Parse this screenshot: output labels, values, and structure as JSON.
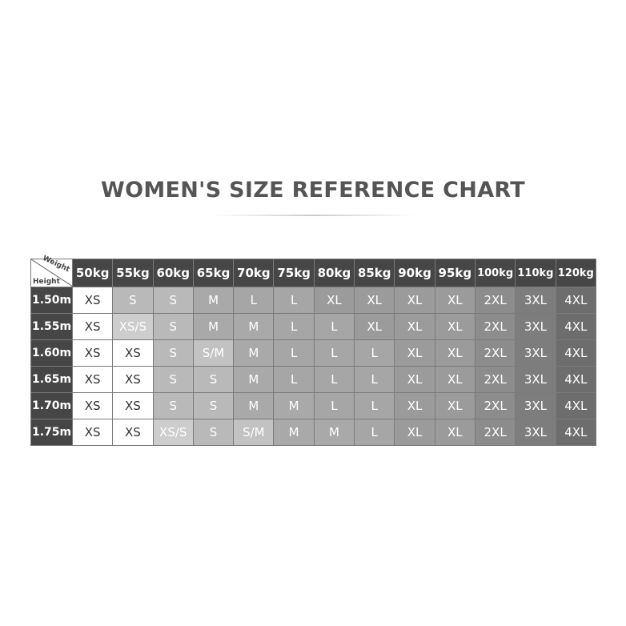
{
  "title": "WOMEN'S SIZE REFERENCE CHART",
  "corner": {
    "weight_label": "Weight",
    "height_label": "Height"
  },
  "weights": [
    "50kg",
    "55kg",
    "60kg",
    "65kg",
    "70kg",
    "75kg",
    "80kg",
    "85kg",
    "90kg",
    "95kg",
    "100kg",
    "110kg",
    "120kg"
  ],
  "rows": [
    {
      "height": "1.50m",
      "sizes": [
        "XS",
        "S",
        "S",
        "M",
        "L",
        "L",
        "XL",
        "XL",
        "XL",
        "XL",
        "2XL",
        "3XL",
        "4XL"
      ]
    },
    {
      "height": "1.55m",
      "sizes": [
        "XS",
        "XS/S",
        "S",
        "M",
        "M",
        "L",
        "L",
        "XL",
        "XL",
        "XL",
        "2XL",
        "3XL",
        "4XL"
      ]
    },
    {
      "height": "1.60m",
      "sizes": [
        "XS",
        "XS",
        "S",
        "S/M",
        "M",
        "L",
        "L",
        "L",
        "XL",
        "XL",
        "2XL",
        "3XL",
        "4XL"
      ]
    },
    {
      "height": "1.65m",
      "sizes": [
        "XS",
        "XS",
        "S",
        "S",
        "M",
        "L",
        "L",
        "L",
        "XL",
        "XL",
        "2XL",
        "3XL",
        "4XL"
      ]
    },
    {
      "height": "1.70m",
      "sizes": [
        "XS",
        "XS",
        "S",
        "S",
        "M",
        "M",
        "L",
        "L",
        "XL",
        "XL",
        "2XL",
        "3XL",
        "4XL"
      ]
    },
    {
      "height": "1.75m",
      "sizes": [
        "XS",
        "XS",
        "XS/S",
        "S",
        "S/M",
        "M",
        "M",
        "L",
        "XL",
        "XL",
        "2XL",
        "3XL",
        "4XL"
      ]
    }
  ],
  "size_colors": {
    "XS": "#ffffff",
    "XS/S": "#cdcdcd",
    "S": "#b9b9b9",
    "S/M": "#c2c2c2",
    "M": "#a9a9a9",
    "L": "#a6a6a6",
    "XL": "#9b9b9b",
    "2XL": "#8c8c8c",
    "3XL": "#7d7d7d",
    "4XL": "#6d6d6d"
  },
  "header_color": "#464646"
}
